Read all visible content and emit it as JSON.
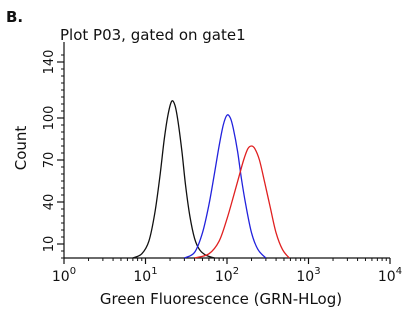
{
  "panel_label": "B.",
  "chart_data": {
    "type": "line",
    "title": "Plot P03, gated on gate1",
    "xlabel": "Green Fluorescence (GRN-HLog)",
    "ylabel": "Count",
    "xscale": "log",
    "xlim": [
      1,
      10000
    ],
    "ylim": [
      0,
      150
    ],
    "x_ticks": [
      {
        "value": 1,
        "base": "10",
        "exp": "0"
      },
      {
        "value": 10,
        "base": "10",
        "exp": "1"
      },
      {
        "value": 100,
        "base": "10",
        "exp": "2"
      },
      {
        "value": 1000,
        "base": "10",
        "exp": "3"
      },
      {
        "value": 10000,
        "base": "10",
        "exp": "4"
      }
    ],
    "y_ticks": [
      {
        "value": 10,
        "label": "10"
      },
      {
        "value": 40,
        "label": "40"
      },
      {
        "value": 70,
        "label": "70"
      },
      {
        "value": 100,
        "label": "100"
      },
      {
        "value": 140,
        "label": "140"
      }
    ],
    "grid": false,
    "legend": "none",
    "series": [
      {
        "color": "#111111",
        "x": [
          7,
          9,
          11,
          13,
          15,
          17,
          19,
          21,
          23,
          25,
          28,
          31,
          35,
          40,
          46,
          55,
          70
        ],
        "y": [
          0,
          3,
          12,
          32,
          58,
          85,
          103,
          112,
          109,
          98,
          76,
          52,
          30,
          14,
          6,
          2,
          0
        ]
      },
      {
        "color": "#2222dd",
        "x": [
          30,
          40,
          50,
          60,
          70,
          80,
          90,
          100,
          110,
          120,
          135,
          150,
          170,
          200,
          240,
          300
        ],
        "y": [
          0,
          4,
          18,
          38,
          60,
          80,
          95,
          102,
          100,
          92,
          76,
          57,
          38,
          18,
          6,
          0
        ]
      },
      {
        "color": "#e02020",
        "x": [
          40,
          60,
          80,
          100,
          120,
          140,
          160,
          180,
          200,
          220,
          250,
          290,
          340,
          400,
          480,
          580
        ],
        "y": [
          0,
          3,
          12,
          28,
          44,
          58,
          70,
          78,
          80,
          78,
          70,
          54,
          36,
          18,
          6,
          0
        ]
      }
    ]
  }
}
